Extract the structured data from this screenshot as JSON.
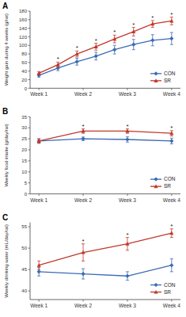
{
  "chart_data": [
    {
      "type": "line",
      "title": "A",
      "ylabel": "Weight gain during 4 weeks (g/rat)",
      "x": [
        1,
        1.43,
        1.86,
        2.29,
        2.71,
        3.14,
        3.57,
        4
      ],
      "xlim": [
        0.8,
        4.2
      ],
      "xticks": [
        {
          "value": 1,
          "label": "Week 1"
        },
        {
          "value": 2,
          "label": "Week 2"
        },
        {
          "value": 3,
          "label": "Week 3"
        },
        {
          "value": 4,
          "label": "Week 4"
        }
      ],
      "ylim": [
        0,
        180
      ],
      "yticks": [
        0,
        20,
        40,
        60,
        80,
        100,
        120,
        140,
        160,
        180
      ],
      "legend": "lower right",
      "series": [
        {
          "name": "CON",
          "color": "#3a6bb5",
          "marker": "diamond",
          "values": [
            30,
            47,
            62,
            75,
            90,
            102,
            112,
            116
          ],
          "errors": [
            4,
            6,
            8,
            9,
            10,
            12,
            13,
            14
          ]
        },
        {
          "name": "SR",
          "color": "#c0392b",
          "marker": "triangle",
          "values": [
            35,
            55,
            80,
            97,
            115,
            132,
            150,
            157
          ],
          "errors": [
            4,
            6,
            7,
            8,
            9,
            10,
            8,
            9
          ]
        }
      ],
      "annotations": [
        {
          "x": 1.43,
          "text": "*"
        },
        {
          "x": 1.86,
          "text": "*"
        },
        {
          "x": 2.29,
          "text": "*"
        },
        {
          "x": 2.71,
          "text": "*"
        },
        {
          "x": 3.14,
          "text": "*"
        },
        {
          "x": 3.57,
          "text": "*"
        },
        {
          "x": 4,
          "text": "*"
        }
      ]
    },
    {
      "type": "line",
      "title": "B",
      "ylabel": "Weekly food intake (g/day/rat)",
      "x": [
        1,
        2,
        3,
        4
      ],
      "xlim": [
        0.8,
        4.2
      ],
      "xticks": [
        {
          "value": 1,
          "label": "Week 1"
        },
        {
          "value": 2,
          "label": "Week 2"
        },
        {
          "value": 3,
          "label": "Week 3"
        },
        {
          "value": 4,
          "label": "Week 4"
        }
      ],
      "ylim": [
        0,
        35
      ],
      "yticks": [
        0,
        5,
        10,
        15,
        20,
        25,
        30,
        35
      ],
      "legend": "lower right",
      "series": [
        {
          "name": "CON",
          "color": "#3a6bb5",
          "marker": "diamond",
          "values": [
            24,
            25,
            24.7,
            24
          ],
          "errors": [
            1,
            0.8,
            1.2,
            1.3
          ]
        },
        {
          "name": "SR",
          "color": "#c0392b",
          "marker": "triangle",
          "values": [
            24,
            28.5,
            28.5,
            27.5
          ],
          "errors": [
            1,
            1,
            1,
            1.2
          ]
        }
      ],
      "annotations": [
        {
          "x": 2,
          "text": "*"
        },
        {
          "x": 3,
          "text": "*"
        },
        {
          "x": 4,
          "text": "*"
        }
      ]
    },
    {
      "type": "line",
      "title": "C",
      "ylabel": "Weekly drinking water (mL/day/rat)",
      "x": [
        1,
        2,
        3,
        4
      ],
      "xlim": [
        0.8,
        4.2
      ],
      "xticks": [
        {
          "value": 1,
          "label": "Week 1"
        },
        {
          "value": 2,
          "label": "Week 2"
        },
        {
          "value": 3,
          "label": "Week 3"
        },
        {
          "value": 4,
          "label": "Week 4"
        }
      ],
      "ylim": [
        38,
        56
      ],
      "yticks": [
        40,
        45,
        50,
        55
      ],
      "legend": "lower right",
      "series": [
        {
          "name": "CON",
          "color": "#3a6bb5",
          "marker": "diamond",
          "values": [
            44.5,
            44,
            43.5,
            46
          ],
          "errors": [
            1,
            1.2,
            1,
            1.5
          ]
        },
        {
          "name": "SR",
          "color": "#c0392b",
          "marker": "triangle",
          "values": [
            46,
            49,
            51,
            53.5
          ],
          "errors": [
            1,
            2,
            1.5,
            1
          ]
        }
      ],
      "annotations": [
        {
          "x": 2,
          "text": "*"
        },
        {
          "x": 3,
          "text": "*"
        },
        {
          "x": 4,
          "text": "*"
        }
      ]
    }
  ]
}
